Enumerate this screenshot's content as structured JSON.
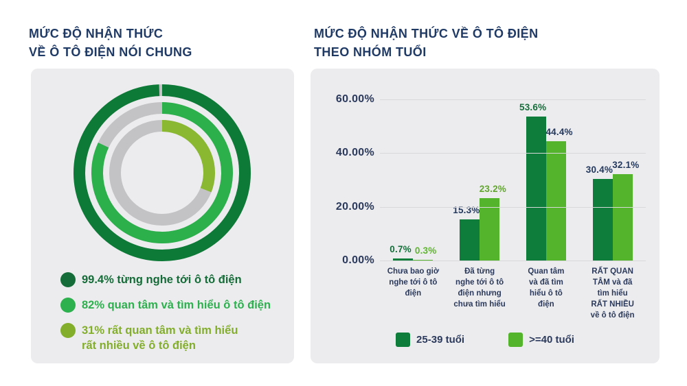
{
  "left_section": {
    "title": "MỨC ĐỘ NHẬN THỨC\nVỀ Ô TÔ ĐIỆN NÓI CHUNG"
  },
  "right_section": {
    "title": "MỨC ĐỘ NHẬN THỨC VỀ Ô TÔ ĐIỆN\nTHEO NHÓM TUỔI"
  },
  "colors": {
    "title_navy": "#203a66",
    "axis_navy": "#2b3a5c",
    "panel_bg": "#ececee",
    "gridline": "#d8d8da",
    "donut_track": "#c3c3c5"
  },
  "chart_data": [
    {
      "type": "pie",
      "subtype": "concentric-donut-rings",
      "title": "MỨC ĐỘ NHẬN THỨC VỀ Ô TÔ ĐIỆN NÓI CHUNG",
      "track_color": "#c3c3c5",
      "rings": [
        {
          "label": "từng nghe tới ô tô điện",
          "value": 99.4,
          "display": "99.4%",
          "color": "#0d7a37"
        },
        {
          "label": "quan tâm và tìm hiểu ô tô điện",
          "value": 82,
          "display": "82%",
          "color": "#2bb04c"
        },
        {
          "label": "rất quan tâm và tìm hiểu rất nhiều về ô tô điện",
          "value": 31,
          "display": "31%",
          "color": "#8ab831"
        }
      ],
      "legend": [
        {
          "text": "99.4% từng nghe tới ô tô điện",
          "color": "#156c38",
          "dot_color": "#156c38"
        },
        {
          "text": "82% quan tâm và tìm hiểu ô tô điện",
          "color": "#2db04e",
          "dot_color": "#2db04e"
        },
        {
          "text": "31% rất quan tâm và tìm hiểu\nrất nhiều về ô tô điện",
          "color": "#83ae2c",
          "dot_color": "#83ae2c"
        }
      ]
    },
    {
      "type": "bar",
      "title": "MỨC ĐỘ NHẬN THỨC VỀ Ô TÔ ĐIỆN THEO NHÓM TUỔI",
      "categories": [
        "Chưa bao giờ\nnghe tới ô tô\nđiện",
        "Đã từng\nnghe tới ô tô\nđiện nhưng\nchưa tìm hiểu",
        "Quan tâm\nvà đã tìm\nhiểu ô tô\nđiện",
        "RẤT QUAN\nTÂM và đã\ntìm hiểu\nRẤT NHIỀU\nvề ô tô điện"
      ],
      "series": [
        {
          "name": "25-39 tuổi",
          "color": "#0e7c3a",
          "values": [
            0.7,
            15.3,
            53.6,
            30.4
          ],
          "labels": [
            "0.7%",
            "15.3%",
            "53.6%",
            "30.4%"
          ],
          "label_colors": [
            "#156e3a",
            "#24395e",
            "#156e3a",
            "#24395e"
          ]
        },
        {
          "name": ">=40 tuổi",
          "color": "#54b42c",
          "values": [
            0.3,
            23.2,
            44.4,
            32.1
          ],
          "labels": [
            "0.3%",
            "23.2%",
            "44.4%",
            "32.1%"
          ],
          "label_colors": [
            "#5fb52f",
            "#62a52f",
            "#24395e",
            "#24395e"
          ]
        }
      ],
      "y_ticks": [
        {
          "value": 60,
          "label": "60.00%"
        },
        {
          "value": 40,
          "label": "40.00%"
        },
        {
          "value": 20,
          "label": "20.00%"
        },
        {
          "value": 0,
          "label": "0.00%"
        }
      ],
      "ylim": [
        0,
        60
      ],
      "grid": true,
      "legend_position": "bottom"
    }
  ]
}
